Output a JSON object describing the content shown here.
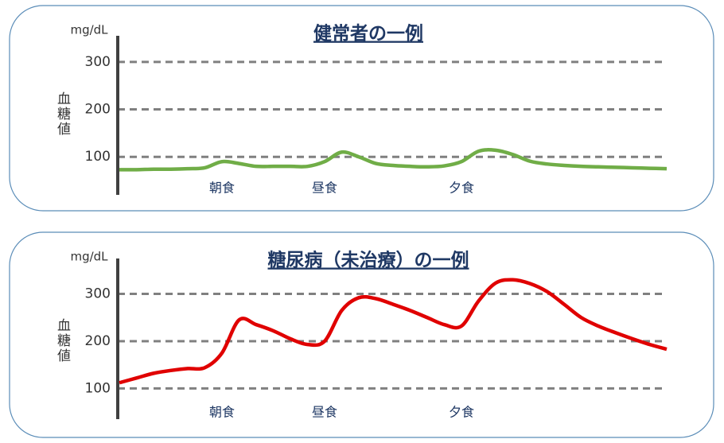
{
  "chart_data": [
    {
      "type": "line",
      "title": "健常者の一例",
      "unit_label": "mg/dL",
      "ylabel": "血糖値",
      "categories": [
        null,
        null,
        null,
        null,
        null,
        null,
        "朝食",
        null,
        null,
        null,
        null,
        null,
        "昼食",
        null,
        null,
        null,
        null,
        null,
        null,
        null,
        "夕食",
        null,
        null,
        null,
        null,
        null,
        null,
        null,
        null,
        null,
        null,
        null,
        null
      ],
      "values": [
        73,
        73,
        74,
        74,
        75,
        77,
        90,
        86,
        80,
        80,
        80,
        80,
        90,
        110,
        100,
        86,
        82,
        80,
        79,
        81,
        90,
        112,
        114,
        105,
        91,
        85,
        82,
        80,
        79,
        78,
        77,
        76,
        75
      ],
      "color": "#70ad47",
      "ylim": [
        20,
        355
      ],
      "yticks": [
        100,
        200,
        300
      ],
      "grid": true
    },
    {
      "type": "line",
      "title": "糖尿病（未治療）の一例",
      "unit_label": "mg/dL",
      "ylabel": "血糖値",
      "categories": [
        null,
        null,
        null,
        null,
        null,
        null,
        "朝食",
        null,
        null,
        null,
        null,
        null,
        "昼食",
        null,
        null,
        null,
        null,
        null,
        null,
        null,
        "夕食",
        null,
        null,
        null,
        null,
        null,
        null,
        null,
        null,
        null,
        null,
        null,
        null
      ],
      "values": [
        112,
        122,
        132,
        138,
        142,
        144,
        175,
        245,
        235,
        222,
        205,
        193,
        200,
        265,
        292,
        290,
        278,
        265,
        250,
        235,
        232,
        285,
        323,
        330,
        322,
        305,
        278,
        250,
        232,
        218,
        205,
        193,
        183
      ],
      "color": "#e00000",
      "ylim": [
        35,
        375
      ],
      "yticks": [
        100,
        200,
        300
      ],
      "grid": true
    }
  ]
}
